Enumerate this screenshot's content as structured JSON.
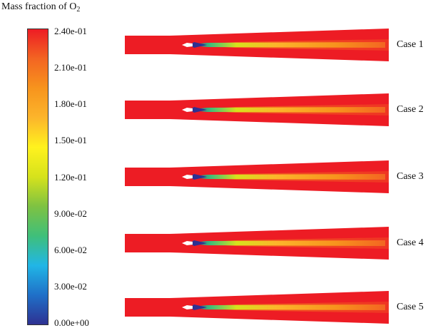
{
  "legend": {
    "title_main": "Mass fraction of O",
    "title_subscript": "2",
    "colors": [
      "#2e3192",
      "#1f70c8",
      "#21b6e6",
      "#3fbf7a",
      "#7ec242",
      "#d6e21c",
      "#fff21e",
      "#fcb52b",
      "#f7941d",
      "#f36522",
      "#ed1c24"
    ],
    "ticks": [
      "2.40e-01",
      "2.10e-01",
      "1.80e-01",
      "1.50e-01",
      "1.20e-01",
      "9.00e-02",
      "6.00e-02",
      "3.00e-02",
      "0.00e+00"
    ]
  },
  "cases": [
    {
      "label": "Case 1"
    },
    {
      "label": "Case 2"
    },
    {
      "label": "Case 3"
    },
    {
      "label": "Case 4"
    },
    {
      "label": "Case 5"
    }
  ],
  "colors": {
    "background_field": "#ed1c24",
    "inlet_core": "#2e3192",
    "plume_mid": "#8cc63f",
    "plume_outer": "#f7941d"
  }
}
